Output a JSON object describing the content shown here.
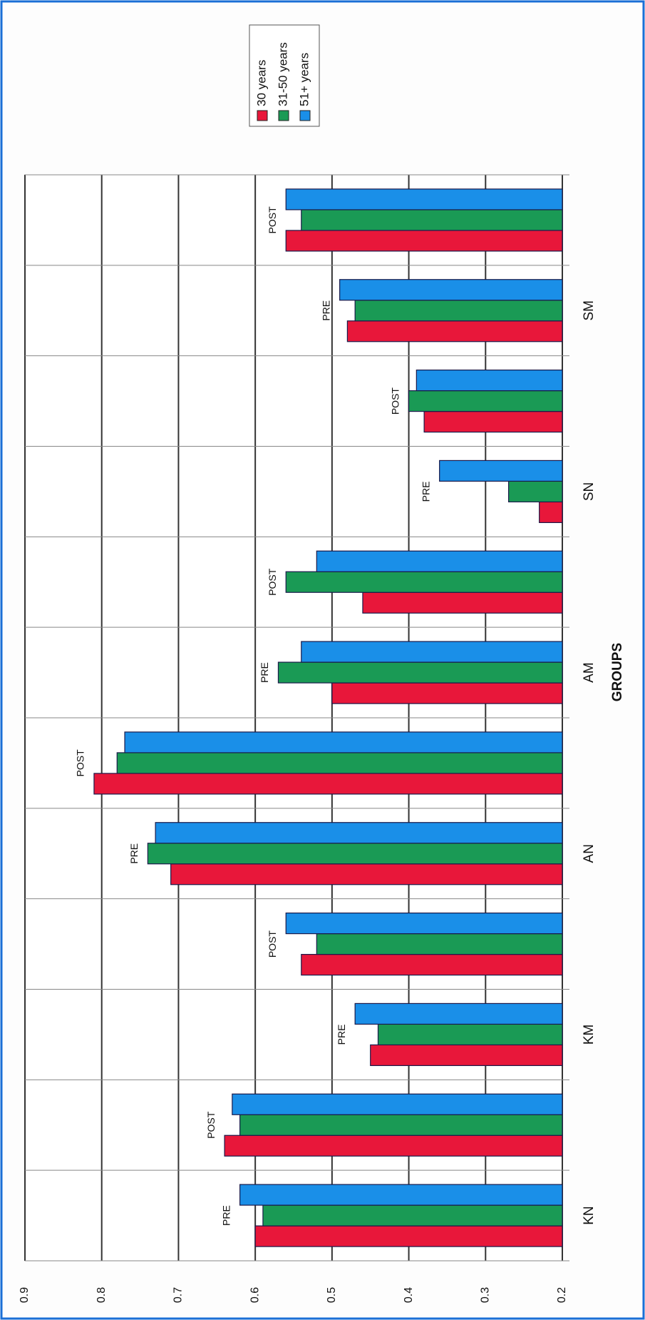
{
  "chart_data": {
    "type": "bar",
    "x_label": "GROUPS",
    "groups": [
      "KN",
      "KM",
      "AN",
      "AM",
      "SN",
      "SM"
    ],
    "categories": [
      "PRE",
      "POST",
      "PRE",
      "POST",
      "PRE",
      "POST",
      "PRE",
      "POST",
      "PRE",
      "POST",
      "PRE",
      "POST"
    ],
    "series": [
      {
        "name": "30 years",
        "color": "#e8173a",
        "values": [
          0.6,
          0.64,
          0.45,
          0.54,
          0.71,
          0.81,
          0.5,
          0.46,
          0.23,
          0.38,
          0.48,
          0.56
        ]
      },
      {
        "name": "31-50 years",
        "color": "#1a9a55",
        "values": [
          0.59,
          0.62,
          0.44,
          0.52,
          0.74,
          0.78,
          0.57,
          0.56,
          0.27,
          0.4,
          0.47,
          0.54
        ]
      },
      {
        "name": "51+  years",
        "color": "#1a8fe8",
        "values": [
          0.62,
          0.63,
          0.47,
          0.56,
          0.73,
          0.77,
          0.54,
          0.52,
          0.36,
          0.39,
          0.49,
          0.56
        ]
      }
    ],
    "ylim": [
      0.2,
      0.9
    ],
    "yticks": [
      0.2,
      0.3,
      0.4,
      0.5,
      0.6,
      0.7,
      0.8,
      0.9
    ],
    "grid": true,
    "legend": "top-right"
  }
}
